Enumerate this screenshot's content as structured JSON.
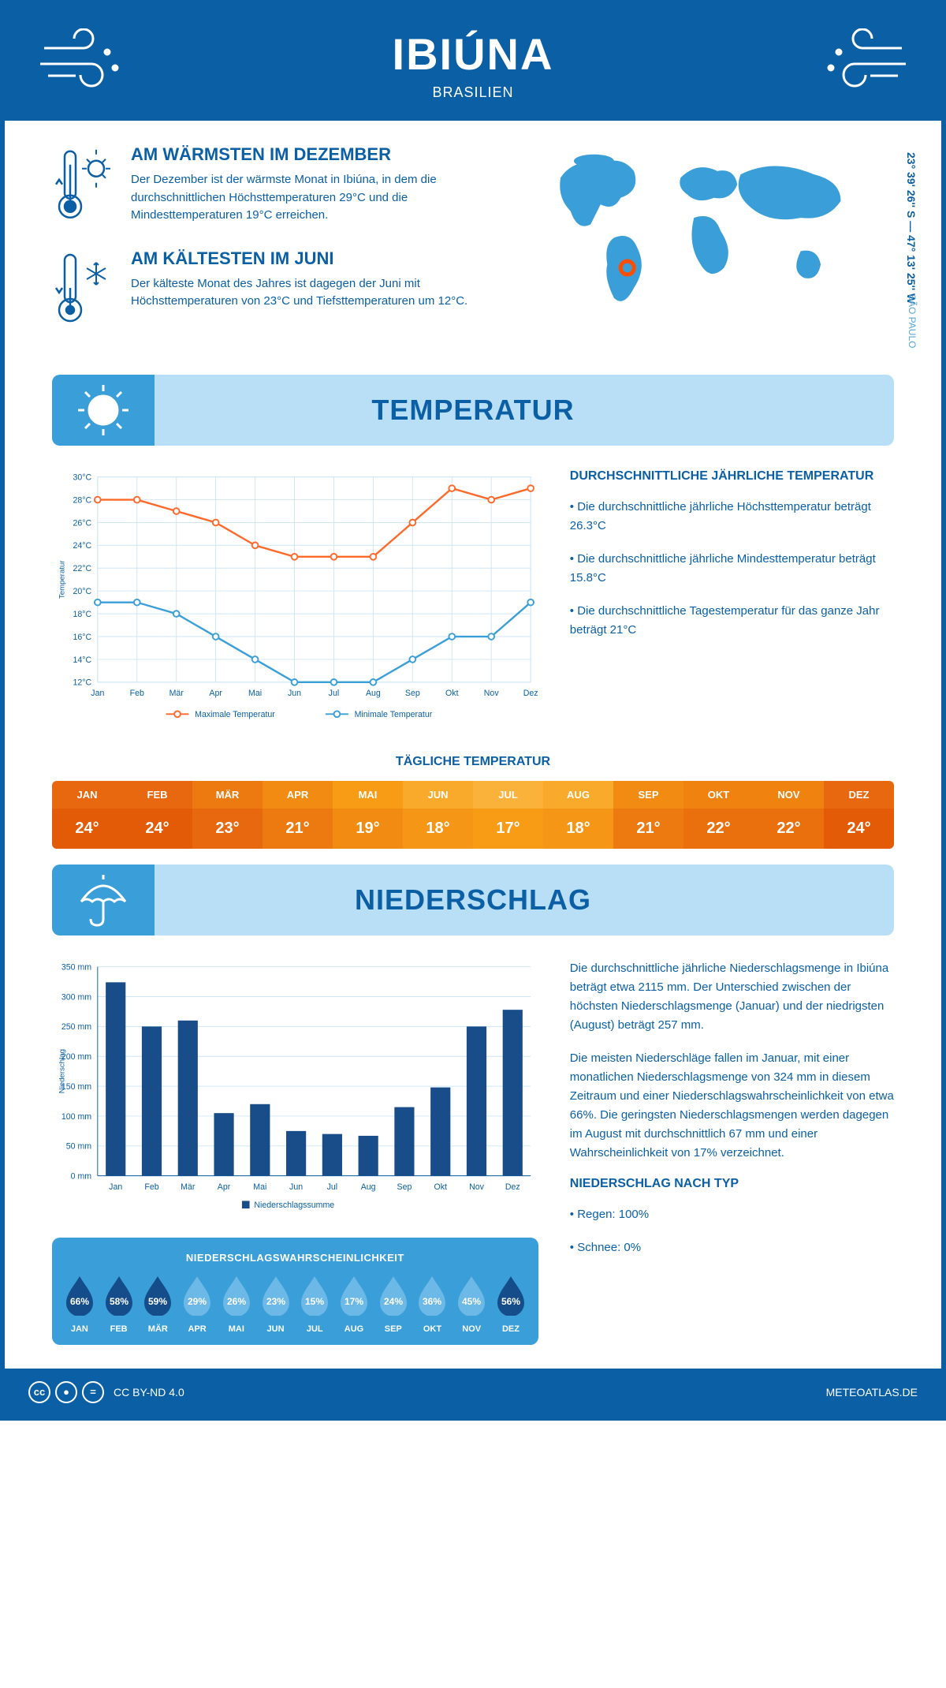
{
  "header": {
    "title": "IBIÚNA",
    "subtitle": "BRASILIEN"
  },
  "coords": "23° 39' 26'' S — 47° 13' 25'' W",
  "region": "SÃO PAULO",
  "colors": {
    "primary": "#0b5fa5",
    "banner_bg": "#b8dff5",
    "banner_icon_bg": "#3a9fd8",
    "map_fill": "#3a9fd8",
    "marker": "#ff4d00",
    "grid": "#cfe6f5",
    "line_max": "#ff6a2b",
    "line_min": "#3a9fd8",
    "bar": "#184d8a",
    "drop_dark": "#154d8a",
    "drop_light": "#6cb8e6"
  },
  "warmest": {
    "title": "AM WÄRMSTEN IM DEZEMBER",
    "text": "Der Dezember ist der wärmste Monat in Ibiúna, in dem die durchschnittlichen Höchsttemperaturen 29°C und die Mindesttemperaturen 19°C erreichen."
  },
  "coldest": {
    "title": "AM KÄLTESTEN IM JUNI",
    "text": "Der kälteste Monat des Jahres ist dagegen der Juni mit Höchsttemperaturen von 23°C und Tiefsttemperaturen um 12°C."
  },
  "temp_section": {
    "title": "TEMPERATUR"
  },
  "temp_chart": {
    "months": [
      "Jan",
      "Feb",
      "Mär",
      "Apr",
      "Mai",
      "Jun",
      "Jul",
      "Aug",
      "Sep",
      "Okt",
      "Nov",
      "Dez"
    ],
    "max": [
      28,
      28,
      27,
      26,
      24,
      23,
      23,
      23,
      26,
      29,
      28,
      29
    ],
    "min": [
      19,
      19,
      18,
      16,
      14,
      12,
      12,
      12,
      14,
      16,
      16,
      19
    ],
    "ymin": 12,
    "ymax": 30,
    "ystep": 2,
    "ylabel": "Temperatur",
    "legend_max": "Maximale Temperatur",
    "legend_min": "Minimale Temperatur"
  },
  "temp_info": {
    "heading": "DURCHSCHNITTLICHE JÄHRLICHE TEMPERATUR",
    "b1": "• Die durchschnittliche jährliche Höchsttemperatur beträgt 26.3°C",
    "b2": "• Die durchschnittliche jährliche Mindesttemperatur beträgt 15.8°C",
    "b3": "• Die durchschnittliche Tagestemperatur für das ganze Jahr beträgt 21°C"
  },
  "daily_temp": {
    "heading": "TÄGLICHE TEMPERATUR",
    "months": [
      "JAN",
      "FEB",
      "MÄR",
      "APR",
      "MAI",
      "JUN",
      "JUL",
      "AUG",
      "SEP",
      "OKT",
      "NOV",
      "DEZ"
    ],
    "values": [
      "24°",
      "24°",
      "23°",
      "21°",
      "19°",
      "18°",
      "17°",
      "18°",
      "21°",
      "22°",
      "22°",
      "24°"
    ],
    "head_colors": [
      "#e8680f",
      "#e8680f",
      "#ed7a10",
      "#f28b12",
      "#f79c14",
      "#f9aa2a",
      "#fab23a",
      "#f9aa2a",
      "#f28b12",
      "#f0820f",
      "#f0820f",
      "#e8680f"
    ],
    "val_colors": [
      "#e35b06",
      "#e35b06",
      "#e8680f",
      "#ed7a10",
      "#f28b12",
      "#f59617",
      "#f79c14",
      "#f59617",
      "#ed7a10",
      "#ea700e",
      "#ea700e",
      "#e35b06"
    ]
  },
  "precip_section": {
    "title": "NIEDERSCHLAG"
  },
  "precip_chart": {
    "months": [
      "Jan",
      "Feb",
      "Mär",
      "Apr",
      "Mai",
      "Jun",
      "Jul",
      "Aug",
      "Sep",
      "Okt",
      "Nov",
      "Dez"
    ],
    "values": [
      324,
      250,
      260,
      105,
      120,
      75,
      70,
      67,
      115,
      148,
      250,
      278
    ],
    "ymax": 350,
    "ystep": 50,
    "ylabel": "Niederschlag",
    "legend": "Niederschlagssumme"
  },
  "precip_info": {
    "p1": "Die durchschnittliche jährliche Niederschlagsmenge in Ibiúna beträgt etwa 2115 mm. Der Unterschied zwischen der höchsten Niederschlagsmenge (Januar) und der niedrigsten (August) beträgt 257 mm.",
    "p2": "Die meisten Niederschläge fallen im Januar, mit einer monatlichen Niederschlagsmenge von 324 mm in diesem Zeitraum und einer Niederschlagswahrscheinlichkeit von etwa 66%. Die geringsten Niederschlagsmengen werden dagegen im August mit durchschnittlich 67 mm und einer Wahrscheinlichkeit von 17% verzeichnet.",
    "type_heading": "NIEDERSCHLAG NACH TYP",
    "type1": "• Regen: 100%",
    "type2": "• Schnee: 0%"
  },
  "prob": {
    "heading": "NIEDERSCHLAGSWAHRSCHEINLICHKEIT",
    "months": [
      "JAN",
      "FEB",
      "MÄR",
      "APR",
      "MAI",
      "JUN",
      "JUL",
      "AUG",
      "SEP",
      "OKT",
      "NOV",
      "DEZ"
    ],
    "values": [
      "66%",
      "58%",
      "59%",
      "29%",
      "26%",
      "23%",
      "15%",
      "17%",
      "24%",
      "36%",
      "45%",
      "56%"
    ],
    "dark": [
      true,
      true,
      true,
      false,
      false,
      false,
      false,
      false,
      false,
      false,
      false,
      true
    ]
  },
  "footer": {
    "license": "CC BY-ND 4.0",
    "site": "METEOATLAS.DE"
  }
}
